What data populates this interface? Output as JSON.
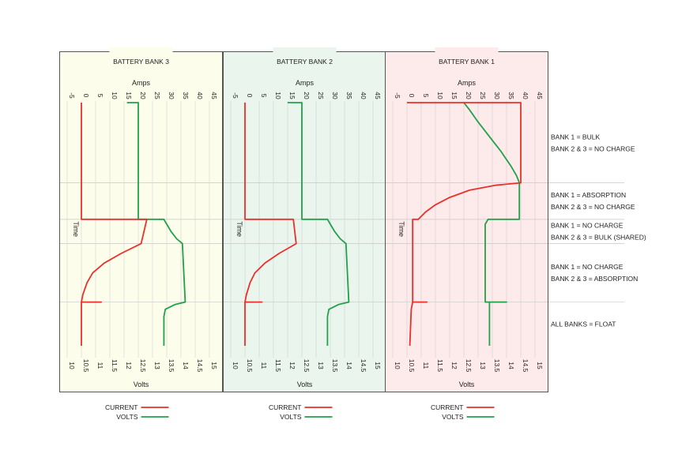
{
  "chart_data": {
    "type": "line",
    "amps_axis_label": "Amps",
    "volts_axis_label": "Volts",
    "time_axis_label": "Time",
    "amps_ticks": [
      "-5",
      "0",
      "5",
      "10",
      "15",
      "20",
      "25",
      "30",
      "35",
      "40",
      "45"
    ],
    "volts_ticks": [
      "10",
      "10.5",
      "11",
      "11.5",
      "12",
      "12.5",
      "13",
      "13.5",
      "14",
      "14.5",
      "15"
    ],
    "amps_range": [
      -5,
      45
    ],
    "volts_range": [
      10,
      15
    ],
    "time_range": [
      0,
      100
    ],
    "phase_boundaries": [
      0,
      33,
      48,
      58,
      82,
      100
    ],
    "phases": [
      {
        "lines": [
          "BANK 1 = BULK",
          "BANK 2 & 3 = NO CHARGE"
        ]
      },
      {
        "lines": [
          "BANK 1 = ABSORPTION",
          "BANK 2 & 3 = NO CHARGE"
        ]
      },
      {
        "lines": [
          "BANK 1 = NO CHARGE",
          "BANK 2 & 3 = BULK (SHARED)"
        ]
      },
      {
        "lines": [
          "BANK 1 = NO CHARGE",
          "BANK 2 & 3 = ABSORPTION"
        ]
      },
      {
        "lines": [
          "ALL BANKS = FLOAT"
        ]
      }
    ],
    "legend": {
      "current_label": "CURRENT",
      "volts_label": "VOLTS"
    },
    "colors": {
      "current": "#e8312a",
      "volts": "#22a04a"
    },
    "panels": [
      {
        "title": "BATTERY BANK 3",
        "background": "#fdfdec",
        "current": [
          [
            0,
            0
          ],
          [
            48,
            0
          ],
          [
            48,
            23
          ],
          [
            58,
            21
          ],
          [
            62,
            14
          ],
          [
            66,
            8
          ],
          [
            70,
            4
          ],
          [
            74,
            2
          ],
          [
            79,
            0.5
          ],
          [
            82,
            0
          ],
          [
            82,
            7
          ],
          [
            82,
            0
          ],
          [
            84,
            0
          ],
          [
            100,
            0
          ]
        ],
        "volts": [
          [
            0,
            16
          ],
          [
            0,
            20
          ],
          [
            48,
            20
          ],
          [
            48,
            29
          ],
          [
            50,
            30
          ],
          [
            53,
            31.5
          ],
          [
            56,
            33.5
          ],
          [
            58,
            35.5
          ],
          [
            82,
            36.5
          ],
          [
            82,
            36.5
          ],
          [
            83,
            33
          ],
          [
            85,
            29.5
          ],
          [
            88,
            29
          ],
          [
            100,
            29
          ]
        ]
      },
      {
        "title": "BATTERY BANK 2",
        "background": "#eaf5ee",
        "current": [
          [
            0,
            0
          ],
          [
            48,
            0
          ],
          [
            48,
            17
          ],
          [
            58,
            18
          ],
          [
            62,
            12
          ],
          [
            66,
            7
          ],
          [
            70,
            3.5
          ],
          [
            74,
            1.8
          ],
          [
            79,
            0.5
          ],
          [
            82,
            0
          ],
          [
            82,
            6
          ],
          [
            82,
            0
          ],
          [
            84,
            0
          ],
          [
            100,
            0
          ]
        ],
        "volts": [
          [
            0,
            15
          ],
          [
            0,
            20
          ],
          [
            48,
            20
          ],
          [
            48,
            29
          ],
          [
            50,
            30
          ],
          [
            53,
            31.5
          ],
          [
            56,
            33.5
          ],
          [
            58,
            35.5
          ],
          [
            82,
            36.5
          ],
          [
            83,
            33
          ],
          [
            85,
            29.5
          ],
          [
            88,
            29
          ],
          [
            100,
            29
          ]
        ]
      },
      {
        "title": "BATTERY BANK 1",
        "background": "#fdeaea",
        "current": [
          [
            0,
            0
          ],
          [
            0,
            40
          ],
          [
            33,
            40
          ],
          [
            34,
            31
          ],
          [
            36,
            22
          ],
          [
            39,
            15
          ],
          [
            42,
            10
          ],
          [
            45,
            6.5
          ],
          [
            48,
            4
          ],
          [
            48,
            2
          ],
          [
            82,
            2
          ],
          [
            82,
            7
          ],
          [
            82,
            2
          ],
          [
            85,
            1.5
          ],
          [
            100,
            1
          ]
        ],
        "volts": [
          [
            0,
            20
          ],
          [
            3,
            22
          ],
          [
            8,
            25
          ],
          [
            14,
            29
          ],
          [
            20,
            33
          ],
          [
            26,
            36.5
          ],
          [
            30,
            38.5
          ],
          [
            33,
            39.5
          ],
          [
            48,
            39.5
          ],
          [
            48,
            28.5
          ],
          [
            50,
            27.5
          ],
          [
            82,
            27.5
          ],
          [
            82,
            35
          ],
          [
            82,
            29
          ],
          [
            100,
            29
          ]
        ]
      }
    ]
  }
}
